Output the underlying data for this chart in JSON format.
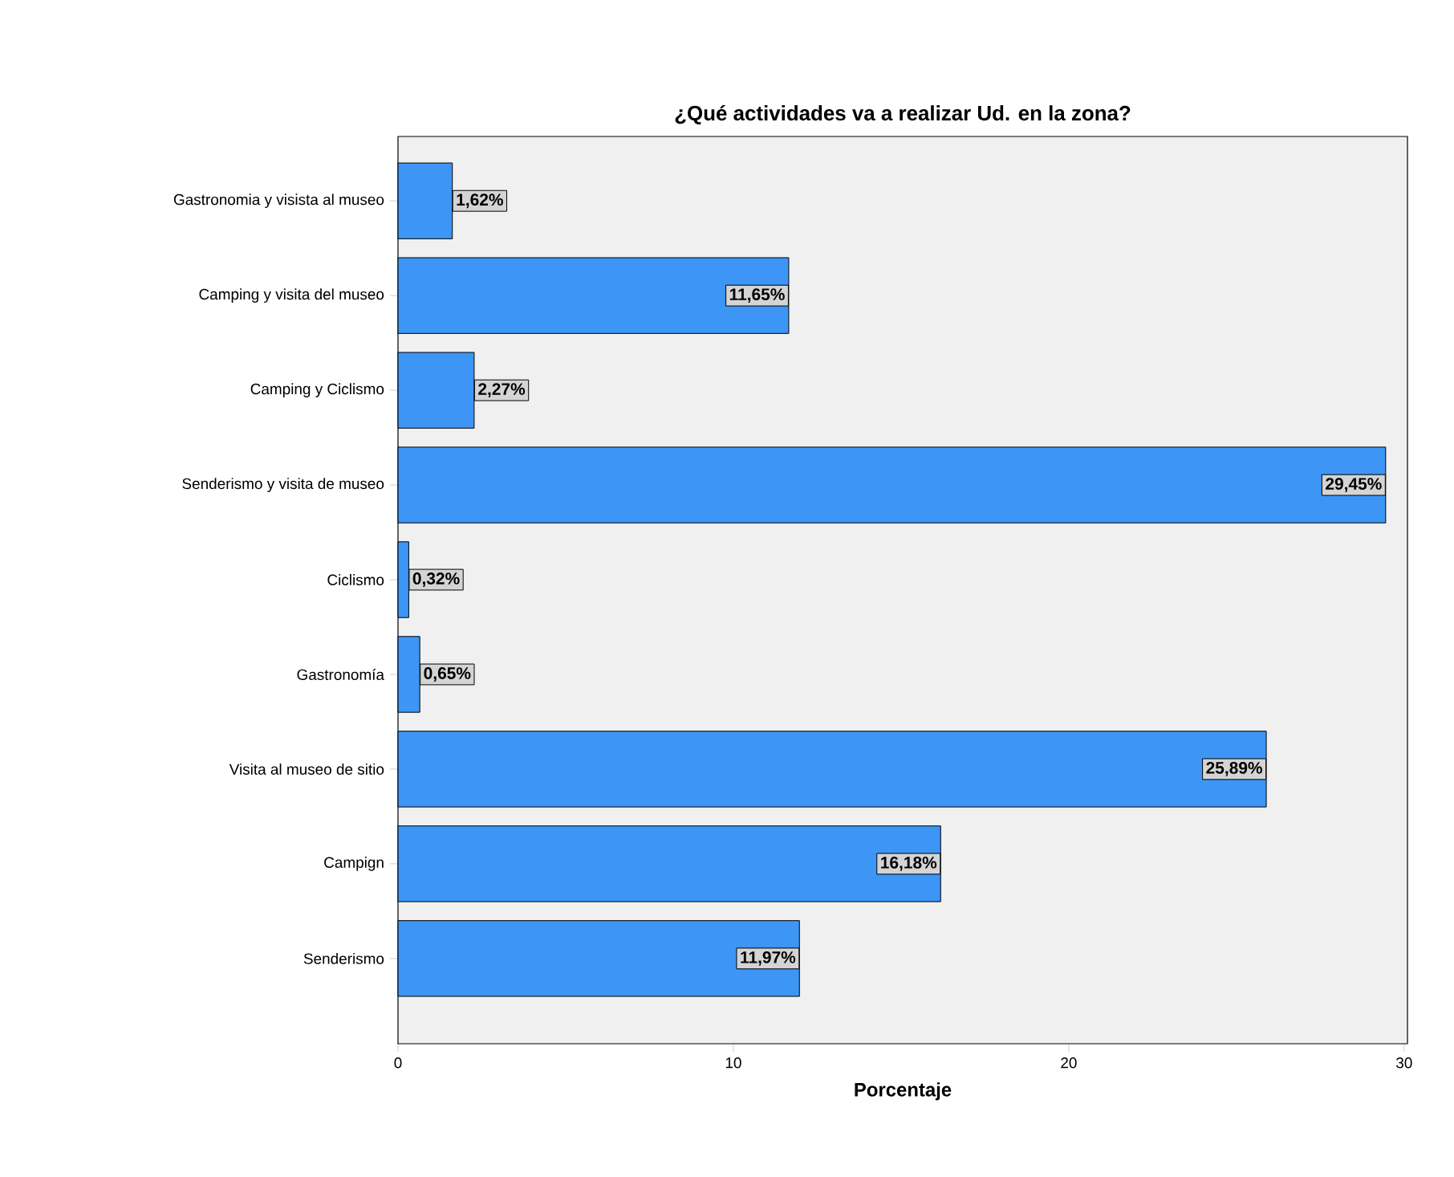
{
  "chart_data": {
    "type": "bar",
    "orientation": "horizontal",
    "title": "¿Qué actividades va a realizar Ud. en la zona?",
    "xlabel": "Porcentaje",
    "categories": [
      "Gastronomia y visista al museo",
      "Camping y visita del museo",
      "Camping y Ciclismo",
      "Senderismo y visita de museo",
      "Ciclismo",
      "Gastronomía",
      "Visita al museo de sitio",
      "Campign",
      "Senderismo"
    ],
    "values": [
      1.62,
      11.65,
      2.27,
      29.45,
      0.32,
      0.65,
      25.89,
      16.18,
      11.97
    ],
    "value_labels": [
      "1,62%",
      "11,65%",
      "2,27%",
      "29,45%",
      "0,32%",
      "0,65%",
      "25,89%",
      "16,18%",
      "11,97%"
    ],
    "color": "#3d95f5",
    "xlim": [
      0,
      30.1
    ],
    "xticks": [
      0,
      10,
      20,
      30
    ],
    "grid": false
  }
}
